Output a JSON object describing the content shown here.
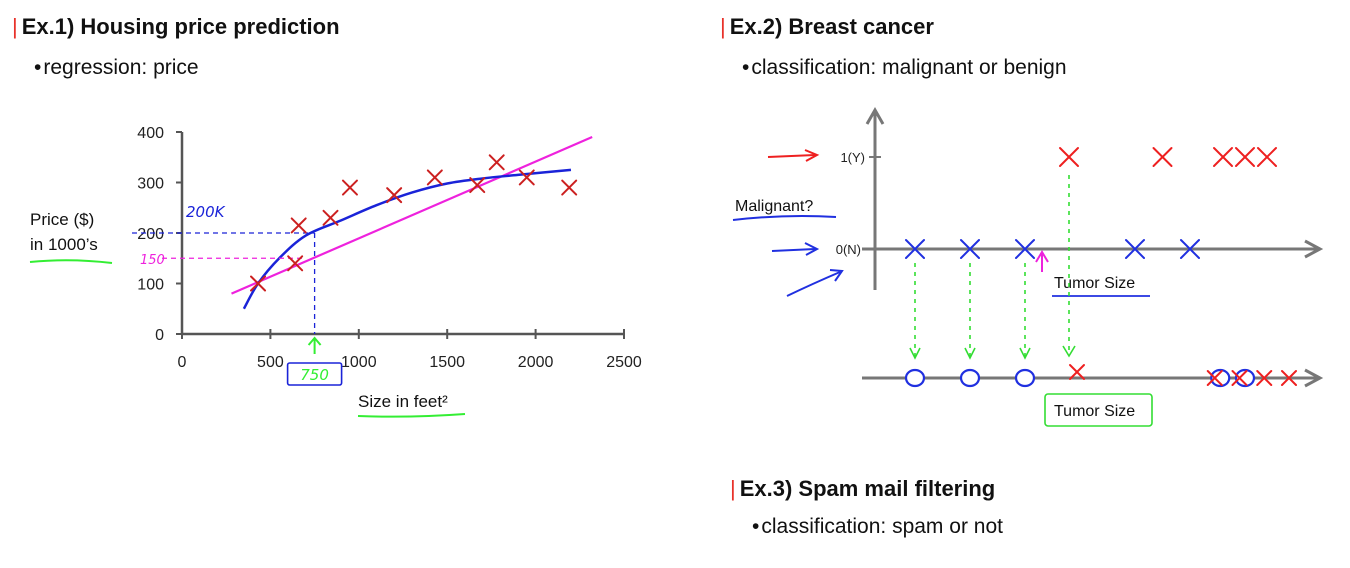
{
  "ex1": {
    "heading_bar": "|",
    "heading": "Ex.1) Housing price prediction",
    "bullet": "regression: price"
  },
  "ex2": {
    "heading_bar": "|",
    "heading": "Ex.2) Breast cancer",
    "bullet": "classification: malignant or benign"
  },
  "ex3": {
    "heading_bar": "|",
    "heading": "Ex.3) Spam mail filtering",
    "bullet": "classification: spam or not"
  },
  "chart_data": [
    {
      "type": "scatter",
      "title": "",
      "xlabel": "Size in feet²",
      "ylabel_line1": "Price ($)",
      "ylabel_line2": "in 1000’s",
      "xlim": [
        0,
        2500
      ],
      "ylim": [
        0,
        400
      ],
      "xticks": [
        0,
        500,
        1000,
        1500,
        2000,
        2500
      ],
      "yticks": [
        0,
        100,
        200,
        300,
        400
      ],
      "points": [
        {
          "x": 430,
          "y": 100
        },
        {
          "x": 640,
          "y": 140
        },
        {
          "x": 660,
          "y": 215
        },
        {
          "x": 840,
          "y": 230
        },
        {
          "x": 950,
          "y": 290
        },
        {
          "x": 1200,
          "y": 275
        },
        {
          "x": 1430,
          "y": 310
        },
        {
          "x": 1670,
          "y": 295
        },
        {
          "x": 1780,
          "y": 340
        },
        {
          "x": 1950,
          "y": 310
        },
        {
          "x": 2190,
          "y": 290
        }
      ],
      "fit_curve": [
        {
          "x": 350,
          "y": 50
        },
        {
          "x": 430,
          "y": 100
        },
        {
          "x": 550,
          "y": 150
        },
        {
          "x": 700,
          "y": 195
        },
        {
          "x": 900,
          "y": 225
        },
        {
          "x": 1100,
          "y": 255
        },
        {
          "x": 1300,
          "y": 280
        },
        {
          "x": 1500,
          "y": 298
        },
        {
          "x": 1700,
          "y": 308
        },
        {
          "x": 1900,
          "y": 315
        },
        {
          "x": 2200,
          "y": 325
        }
      ],
      "fit_line": [
        {
          "x": 280,
          "y": 80
        },
        {
          "x": 2320,
          "y": 390
        }
      ],
      "query_x": 750,
      "curve_answer": 200,
      "line_answer": 150,
      "annotations": {
        "curve_answer_label": "200K",
        "line_answer_label": "150",
        "query_label": "750"
      },
      "colors": {
        "points": "#cc2020",
        "curve": "#1a23d8",
        "line": "#ee22dd",
        "axis": "#555555",
        "underline": "#33ee33"
      }
    },
    {
      "type": "scatter",
      "title": "",
      "xlabel": "Tumor Size",
      "ylabel": "Malignant?",
      "yticks_labels": [
        "1(Y)",
        "0(N)"
      ],
      "benign_sizes": [
        1,
        2,
        3,
        5,
        6
      ],
      "malignant_sizes": [
        3.8,
        5.5,
        6.6,
        7.0,
        7.4
      ],
      "projection_xlabel": "Tumor Size",
      "projection_markers": {
        "benign": [
          "O",
          "O",
          "O",
          "O",
          "O"
        ],
        "malignant": [
          "X",
          "X",
          "X",
          "X",
          "X"
        ]
      },
      "colors": {
        "benign": "#2030e0",
        "malignant": "#ee2020",
        "axis": "#777777",
        "projection": "#33dd33",
        "threshold": "#ee22dd"
      }
    }
  ]
}
